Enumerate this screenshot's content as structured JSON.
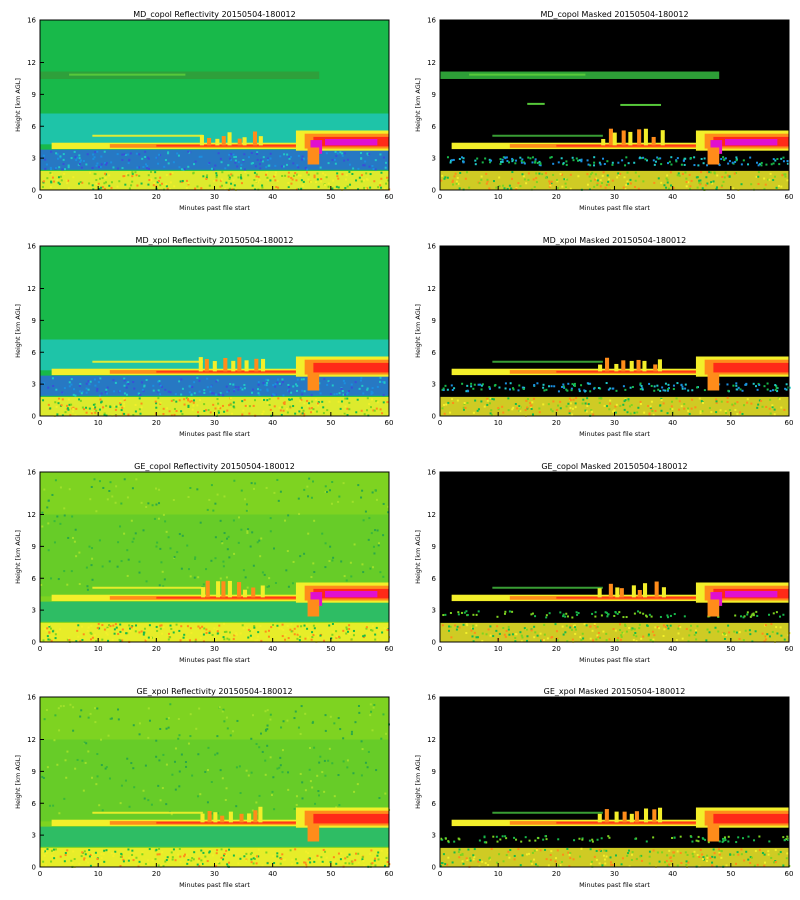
{
  "colors": {
    "background_green": "#18b94a",
    "background_lime": "#7ed321",
    "mask_black": "#000000",
    "band_cyan": "#20c8c8",
    "band_blue": "#2a6cd8",
    "cloud_yellow": "#f3ef2a",
    "cloud_orange": "#ff8c1a",
    "cloud_red": "#ff2a18",
    "cloud_magenta": "#e010d0"
  },
  "chart_data": [
    {
      "type": "heatmap",
      "title": "MD_copol Reflectivity 20150504-180012",
      "xlabel": "Minutes past file start",
      "ylabel": "Height [km AGL]",
      "xlim": [
        0,
        60
      ],
      "ylim": [
        0,
        16
      ],
      "xticks": [
        0,
        10,
        20,
        30,
        40,
        50,
        60
      ],
      "yticks": [
        0,
        3,
        6,
        9,
        12,
        16
      ],
      "variant": "md_ref",
      "cirrus_km": 10.8,
      "melting_layer_km": 4.2
    },
    {
      "type": "heatmap",
      "title": "MD_copol Masked 20150504-180012",
      "xlabel": "Minutes past file start",
      "ylabel": "Height [km AGL]",
      "xlim": [
        0,
        60
      ],
      "ylim": [
        0,
        16
      ],
      "xticks": [
        0,
        10,
        20,
        30,
        40,
        50,
        60
      ],
      "yticks": [
        0,
        3,
        6,
        9,
        12,
        16
      ],
      "variant": "md_mask",
      "cirrus_km": 10.8,
      "melting_layer_km": 4.2
    },
    {
      "type": "heatmap",
      "title": "MD_xpol Reflectivity 20150504-180012",
      "xlabel": "Minutes past file start",
      "ylabel": "Height [km AGL]",
      "xlim": [
        0,
        60
      ],
      "ylim": [
        0,
        16
      ],
      "xticks": [
        0,
        10,
        20,
        30,
        40,
        50,
        60
      ],
      "yticks": [
        0,
        3,
        6,
        9,
        12,
        16
      ],
      "variant": "mdx_ref",
      "melting_layer_km": 4.2
    },
    {
      "type": "heatmap",
      "title": "MD_xpol Masked 20150504-180012",
      "xlabel": "Minutes past file start",
      "ylabel": "Height [km AGL]",
      "xlim": [
        0,
        60
      ],
      "ylim": [
        0,
        16
      ],
      "xticks": [
        0,
        10,
        20,
        30,
        40,
        50,
        60
      ],
      "yticks": [
        0,
        3,
        6,
        9,
        12,
        16
      ],
      "variant": "mdx_mask",
      "melting_layer_km": 4.2
    },
    {
      "type": "heatmap",
      "title": "GE_copol Reflectivity 20150504-180012",
      "xlabel": "Minutes past file start",
      "ylabel": "Height [km AGL]",
      "xlim": [
        0,
        60
      ],
      "ylim": [
        0,
        16
      ],
      "xticks": [
        0,
        10,
        20,
        30,
        40,
        50,
        60
      ],
      "yticks": [
        0,
        3,
        6,
        9,
        12,
        16
      ],
      "variant": "ge_ref",
      "melting_layer_km": 4.2
    },
    {
      "type": "heatmap",
      "title": "GE_copol Masked 20150504-180012",
      "xlabel": "Minutes past file start",
      "ylabel": "Height [km AGL]",
      "xlim": [
        0,
        60
      ],
      "ylim": [
        0,
        16
      ],
      "xticks": [
        0,
        10,
        20,
        30,
        40,
        50,
        60
      ],
      "yticks": [
        0,
        3,
        6,
        9,
        12,
        16
      ],
      "variant": "ge_mask",
      "melting_layer_km": 4.2
    },
    {
      "type": "heatmap",
      "title": "GE_xpol Reflectivity 20150504-180012",
      "xlabel": "Minutes past file start",
      "ylabel": "Height [km AGL]",
      "xlim": [
        0,
        60
      ],
      "ylim": [
        0,
        16
      ],
      "xticks": [
        0,
        10,
        20,
        30,
        40,
        50,
        60
      ],
      "yticks": [
        0,
        3,
        6,
        9,
        12,
        16
      ],
      "variant": "gex_ref",
      "melting_layer_km": 4.2
    },
    {
      "type": "heatmap",
      "title": "GE_xpol Masked 20150504-180012",
      "xlabel": "Minutes past file start",
      "ylabel": "Height [km AGL]",
      "xlim": [
        0,
        60
      ],
      "ylim": [
        0,
        16
      ],
      "xticks": [
        0,
        10,
        20,
        30,
        40,
        50,
        60
      ],
      "yticks": [
        0,
        3,
        6,
        9,
        12,
        16
      ],
      "variant": "gex_mask",
      "melting_layer_km": 4.2
    }
  ]
}
